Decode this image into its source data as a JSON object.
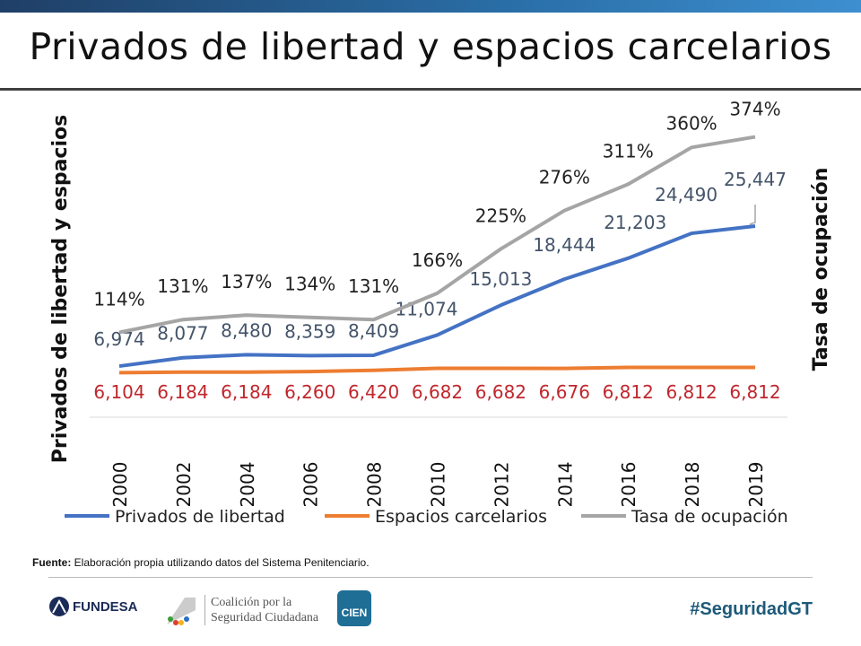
{
  "header": {
    "title": "Privados de libertad y espacios carcelarios"
  },
  "chart_data": {
    "type": "line",
    "categories": [
      "2000",
      "2002",
      "2004",
      "2006",
      "2008",
      "2010",
      "2012",
      "2014",
      "2016",
      "2018",
      "2019"
    ],
    "series": [
      {
        "name": "Privados de libertad",
        "axis": "left",
        "color": "#4472c4",
        "values": [
          6974,
          8077,
          8480,
          8359,
          8409,
          11074,
          15013,
          18444,
          21203,
          24490,
          25447
        ],
        "labels": [
          "6,974",
          "8,077",
          "8,480",
          "8,359",
          "8,409",
          "11,074",
          "15,013",
          "18,444",
          "21,203",
          "24,490",
          "25,447"
        ]
      },
      {
        "name": "Espacios carcelarios",
        "axis": "left",
        "color": "#ed7d31",
        "values": [
          6104,
          6184,
          6184,
          6260,
          6420,
          6682,
          6682,
          6676,
          6812,
          6812,
          6812
        ],
        "labels": [
          "6,104",
          "6,184",
          "6,184",
          "6,260",
          "6,420",
          "6,682",
          "6,682",
          "6,676",
          "6,812",
          "6,812",
          "6,812"
        ]
      },
      {
        "name": "Tasa de ocupación",
        "axis": "right",
        "color": "#a5a5a5",
        "values": [
          114,
          131,
          137,
          134,
          131,
          166,
          225,
          276,
          311,
          360,
          374
        ],
        "labels": [
          "114%",
          "131%",
          "137%",
          "134%",
          "131%",
          "166%",
          "225%",
          "276%",
          "311%",
          "360%",
          "374%"
        ]
      }
    ],
    "ylabel": "Privados de libertad y espacios",
    "y2label": "Tasa de ocupación",
    "legend": "bottom",
    "grid": false
  },
  "footer": {
    "source_label": "Fuente:",
    "source_text": " Elaboración propia utilizando datos del Sistema Penitenciario.",
    "logo1": "FUNDESA",
    "logo2_line1": "Coalición por la",
    "logo2_line2": "Seguridad Ciudadana",
    "logo3": "CIEN",
    "hashtag": "#SeguridadGT"
  }
}
